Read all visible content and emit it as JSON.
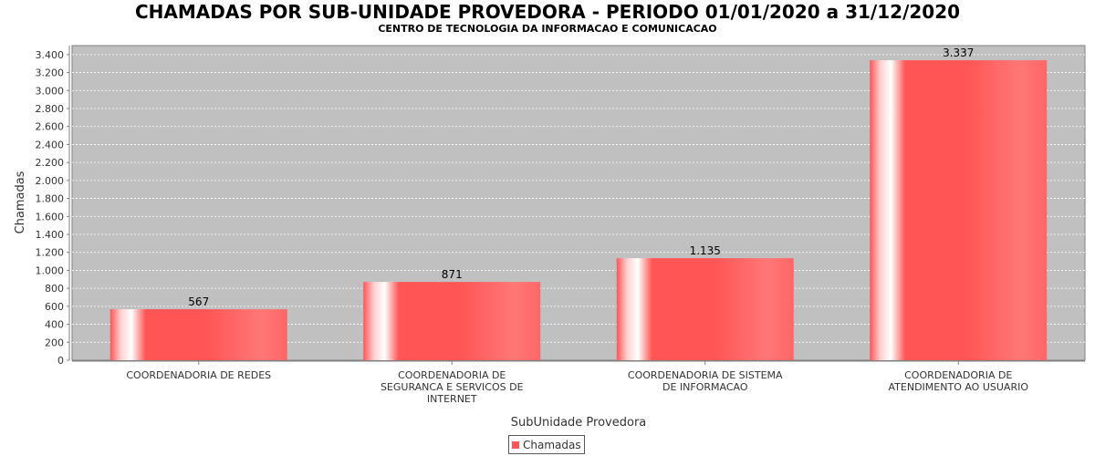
{
  "chart_data": {
    "type": "bar",
    "title": "CHAMADAS POR SUB-UNIDADE PROVEDORA - PERIODO 01/01/2020 a 31/12/2020",
    "subtitle": "CENTRO DE TECNOLOGIA DA INFORMACAO E COMUNICACAO",
    "xlabel": "SubUnidade Provedora",
    "ylabel": "Chamadas",
    "categories": [
      [
        "COORDENADORIA DE REDES"
      ],
      [
        "COORDENADORIA DE",
        "SEGURANCA E SERVICOS DE",
        "INTERNET"
      ],
      [
        "COORDENADORIA DE SISTEMA",
        "DE INFORMACAO"
      ],
      [
        "COORDENADORIA DE",
        "ATENDIMENTO AO USUARIO"
      ]
    ],
    "series": [
      {
        "name": "Chamadas",
        "values": [
          567,
          871,
          1135,
          3337
        ],
        "color": "#ff5555"
      }
    ],
    "value_labels": [
      "567",
      "871",
      "1.135",
      "3.337"
    ],
    "ylim": [
      0,
      3500
    ],
    "yticks": [
      0,
      200,
      400,
      600,
      800,
      1000,
      1200,
      1400,
      1600,
      1800,
      2000,
      2200,
      2400,
      2600,
      2800,
      3000,
      3200,
      3400
    ],
    "ytick_labels": [
      "0",
      "200",
      "400",
      "600",
      "800",
      "1.000",
      "1.200",
      "1.400",
      "1.600",
      "1.800",
      "2.000",
      "2.200",
      "2.400",
      "2.600",
      "2.800",
      "3.000",
      "3.200",
      "3.400"
    ],
    "grid": true,
    "legend": "bottom-center",
    "plot_background": "#c0c0c0",
    "grid_color": "#ffffff"
  }
}
